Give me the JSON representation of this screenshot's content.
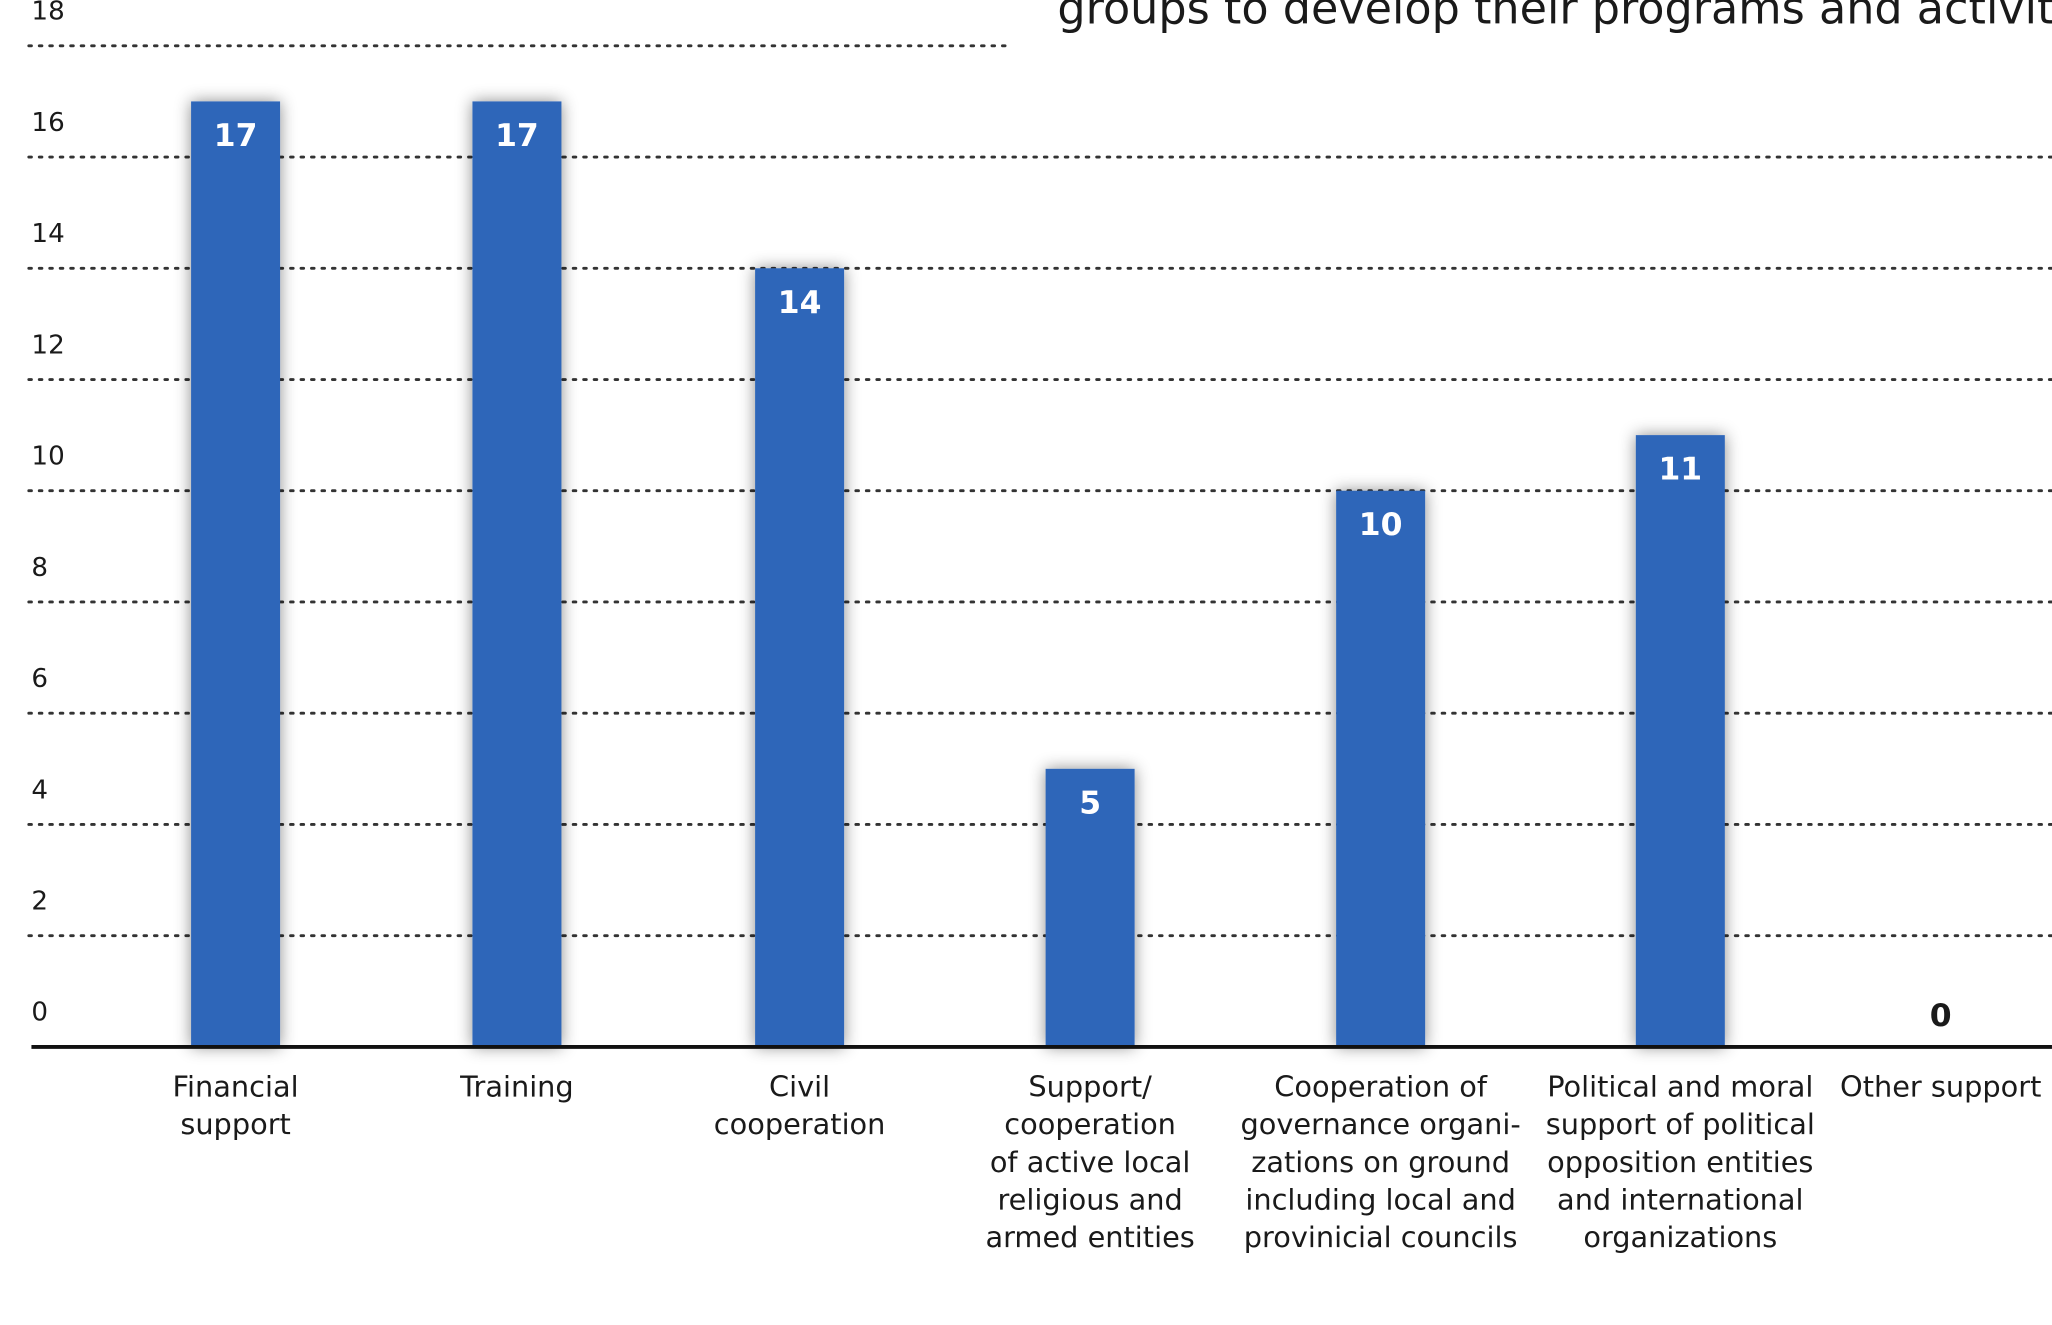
{
  "chart_data": {
    "type": "bar",
    "title": "groups to develop their programs and activites",
    "categories": [
      "Financial\nsupport",
      "Training",
      "Civil\ncooperation",
      "Support/\ncooperation\nof active local\nreligious and\narmed entities",
      "Cooperation of\ngovernance organi-\nzations on ground\nincluding local and\nprovinicial councils",
      "Political and moral\nsupport of political\nopposition entities\nand international\norganizations",
      "Other support"
    ],
    "values": [
      17,
      17,
      14,
      5,
      10,
      11,
      0
    ],
    "color": "#2f66b9",
    "ylim": [
      0,
      18
    ],
    "yticks": [
      0,
      2,
      4,
      6,
      8,
      10,
      12,
      14,
      16,
      18
    ],
    "grid": true
  }
}
